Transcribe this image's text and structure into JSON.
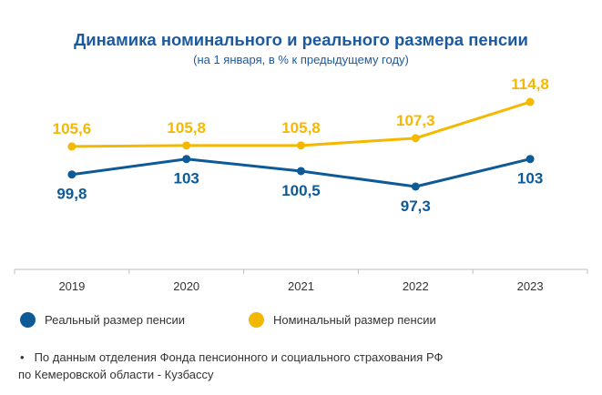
{
  "chart_data": {
    "type": "line",
    "title": "Динамика номинального и реального размера пенсии",
    "subtitle": "(на 1 января, в % к предыдущему году)",
    "categories": [
      "2019",
      "2020",
      "2021",
      "2022",
      "2023"
    ],
    "series": [
      {
        "name": "Номинальный размер пенсии",
        "color": "#f5b800",
        "values": [
          105.6,
          105.8,
          105.8,
          107.3,
          114.8
        ],
        "labels": [
          "105,6",
          "105,8",
          "105,8",
          "107,3",
          "114,8"
        ],
        "label_position": "above"
      },
      {
        "name": "Реальный размер пенсии",
        "color": "#0d5a96",
        "values": [
          99.8,
          103,
          100.5,
          97.3,
          103
        ],
        "labels": [
          "99,8",
          "103",
          "100,5",
          "97,3",
          "103"
        ],
        "label_position": "below"
      }
    ],
    "ylim": [
      92,
      117
    ],
    "grid": false,
    "legend_position": "bottom"
  },
  "legend": [
    {
      "label": "Реальный размер пенсии",
      "color": "#0d5a96"
    },
    {
      "label": "Номинальный размер пенсии",
      "color": "#f5b800"
    }
  ],
  "footnote": {
    "bullet": "•",
    "line1": "По данным отделения Фонда пенсионного и социального страхования РФ",
    "line2": "по Кемеровской области - Кузбассу"
  },
  "colors": {
    "title": "#1c5a9e",
    "axis": "#bfbfbf",
    "text": "#333333"
  }
}
